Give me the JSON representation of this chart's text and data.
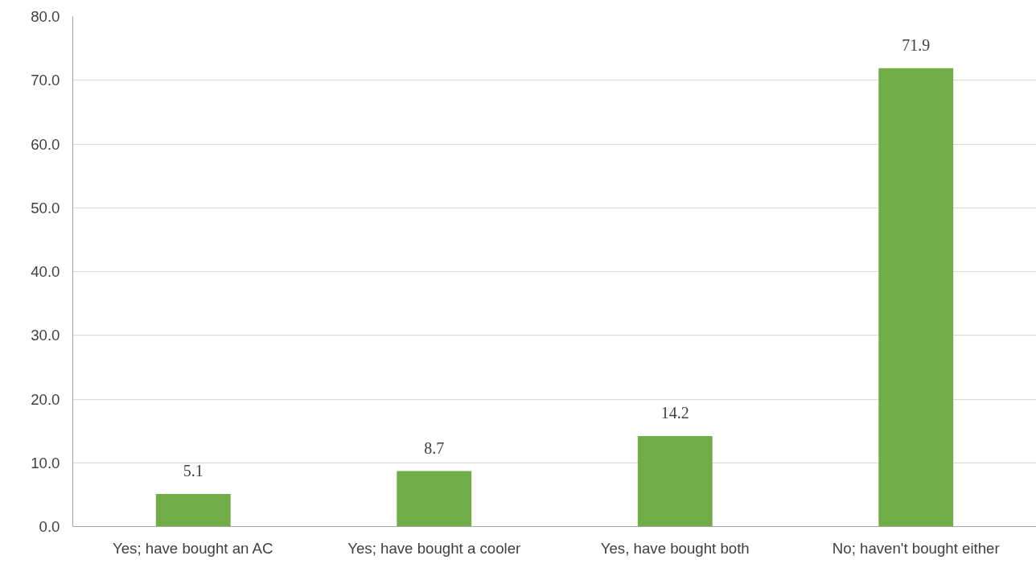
{
  "chart_data": {
    "type": "bar",
    "categories": [
      "Yes; have bought an AC",
      "Yes; have bought a cooler",
      "Yes, have bought both",
      "No; haven't bought either"
    ],
    "values": [
      5.1,
      8.7,
      14.2,
      71.9
    ],
    "color": "#70ad47",
    "ylim": [
      0,
      80
    ],
    "yticks": [
      {
        "value": 0,
        "label": "0.0"
      },
      {
        "value": 10,
        "label": "10.0"
      },
      {
        "value": 20,
        "label": "20.0"
      },
      {
        "value": 30,
        "label": "30.0"
      },
      {
        "value": 40,
        "label": "40.0"
      },
      {
        "value": 50,
        "label": "50.0"
      },
      {
        "value": 60,
        "label": "60.0"
      },
      {
        "value": 70,
        "label": "70.0"
      },
      {
        "value": 80,
        "label": "80.0"
      }
    ],
    "grid": "y",
    "data_labels": true
  }
}
